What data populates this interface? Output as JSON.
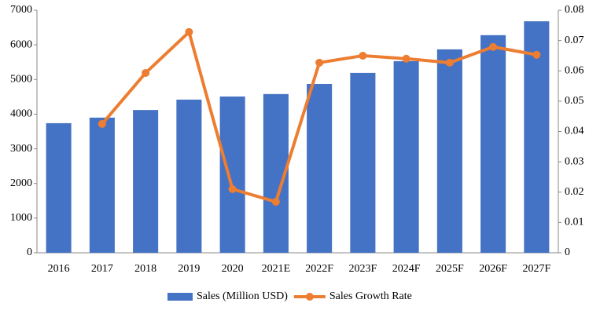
{
  "chart_data": {
    "type": "bar",
    "categories": [
      "2016",
      "2017",
      "2018",
      "2019",
      "2020",
      "2021E",
      "2022F",
      "2023F",
      "2024F",
      "2025F",
      "2026F",
      "2027F"
    ],
    "series": [
      {
        "name": "Sales (Million USD)",
        "type": "bar",
        "color": "#4472c4",
        "values": [
          3740,
          3900,
          4120,
          4420,
          4510,
          4580,
          4870,
          5190,
          5530,
          5870,
          6280,
          6680
        ]
      },
      {
        "name": "Sales Growth Rate",
        "type": "line",
        "axis": "y2",
        "color": "#ed7d31",
        "values": [
          null,
          0.0425,
          0.0593,
          0.0728,
          0.021,
          0.0168,
          0.0627,
          0.065,
          0.064,
          0.0627,
          0.0679,
          0.0653
        ]
      }
    ],
    "ylim": [
      0,
      7000
    ],
    "yticks": [
      0,
      1000,
      2000,
      3000,
      4000,
      5000,
      6000,
      7000
    ],
    "y2lim": [
      0,
      0.08
    ],
    "y2ticks": [
      0,
      0.01,
      0.02,
      0.03,
      0.04,
      0.05,
      0.06,
      0.07,
      0.08
    ],
    "grid": false,
    "legend": "bottom"
  }
}
